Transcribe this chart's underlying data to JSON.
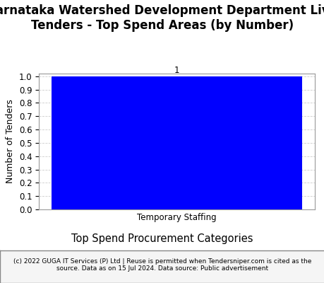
{
  "title": "Karnataka Watershed Development Department Live\nTenders - Top Spend Areas (by Number)",
  "categories": [
    "Temporary Staffing"
  ],
  "values": [
    1
  ],
  "bar_color": "#0000FF",
  "ylabel": "Number of Tenders",
  "xlabel": "Top Spend Procurement Categories",
  "ylim": [
    0.0,
    1.0
  ],
  "yticks": [
    0.0,
    0.1,
    0.2,
    0.3,
    0.4,
    0.5,
    0.6,
    0.7,
    0.8,
    0.9,
    1.0
  ],
  "bar_label_value": "1",
  "title_fontsize": 12,
  "axis_label_fontsize": 9,
  "tick_fontsize": 8.5,
  "xlabel_fontsize": 10.5,
  "footer_text": "(c) 2022 GUGA IT Services (P) Ltd | Reuse is permitted when Tendersniper.com is cited as the\nsource. Data as on 15 Jul 2024. Data source: Public advertisement",
  "footer_fontsize": 6.5,
  "grid_color": "#cccccc",
  "background_color": "#ffffff",
  "plot_bg_color": "#ffffff",
  "border_color": "#999999"
}
